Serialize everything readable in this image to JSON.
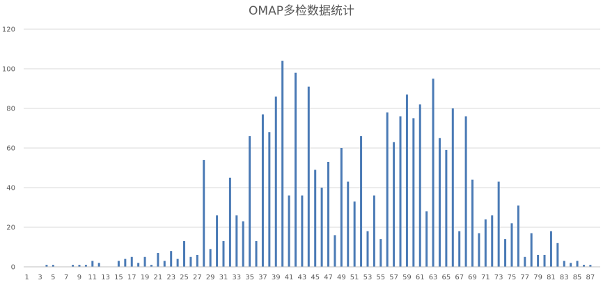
{
  "chart_data": {
    "type": "bar",
    "title": "OMAP多检数据统计",
    "xlabel": "",
    "ylabel": "",
    "ylim": [
      0,
      120
    ],
    "yticks": [
      0,
      20,
      40,
      60,
      80,
      100,
      120
    ],
    "grid": true,
    "legend": "none",
    "bar_color": "#4a7ab5",
    "x_tick_labels": [
      "1",
      "3",
      "5",
      "7",
      "9",
      "11",
      "13",
      "15",
      "17",
      "19",
      "21",
      "23",
      "25",
      "27",
      "29",
      "31",
      "33",
      "35",
      "37",
      "39",
      "41",
      "43",
      "45",
      "47",
      "49",
      "51",
      "53",
      "55",
      "57",
      "59",
      "61",
      "63",
      "65",
      "67",
      "69",
      "71",
      "73",
      "75",
      "77",
      "79",
      "81",
      "83",
      "85",
      "87"
    ],
    "categories": [
      "1",
      "2",
      "3",
      "4",
      "5",
      "6",
      "7",
      "8",
      "9",
      "10",
      "11",
      "12",
      "13",
      "14",
      "15",
      "16",
      "17",
      "18",
      "19",
      "20",
      "21",
      "22",
      "23",
      "24",
      "25",
      "26",
      "27",
      "28",
      "29",
      "30",
      "31",
      "32",
      "33",
      "34",
      "35",
      "36",
      "37",
      "38",
      "39",
      "40",
      "41",
      "42",
      "43",
      "44",
      "45",
      "46",
      "47",
      "48",
      "49",
      "50",
      "51",
      "52",
      "53",
      "54",
      "55",
      "56",
      "57",
      "58",
      "59",
      "60",
      "61",
      "62",
      "63",
      "64",
      "65",
      "66",
      "67",
      "68",
      "69",
      "70",
      "71",
      "72",
      "73",
      "74",
      "75",
      "76",
      "77",
      "78",
      "79",
      "80",
      "81",
      "82",
      "83",
      "84",
      "85",
      "86",
      "87",
      "88"
    ],
    "values": [
      0,
      0,
      0,
      1,
      1,
      0,
      0,
      1,
      1,
      1,
      3,
      2,
      0,
      0,
      3,
      4,
      5,
      2,
      5,
      1,
      7,
      3,
      8,
      4,
      13,
      5,
      6,
      54,
      9,
      26,
      13,
      45,
      26,
      23,
      66,
      13,
      77,
      68,
      86,
      104,
      36,
      98,
      36,
      91,
      49,
      40,
      53,
      16,
      60,
      43,
      33,
      66,
      18,
      36,
      14,
      78,
      63,
      76,
      87,
      75,
      82,
      28,
      95,
      65,
      59,
      80,
      18,
      76,
      44,
      17,
      24,
      26,
      43,
      14,
      22,
      31,
      5,
      17,
      6,
      6,
      18,
      12,
      3,
      2,
      3,
      1,
      1,
      0
    ]
  }
}
